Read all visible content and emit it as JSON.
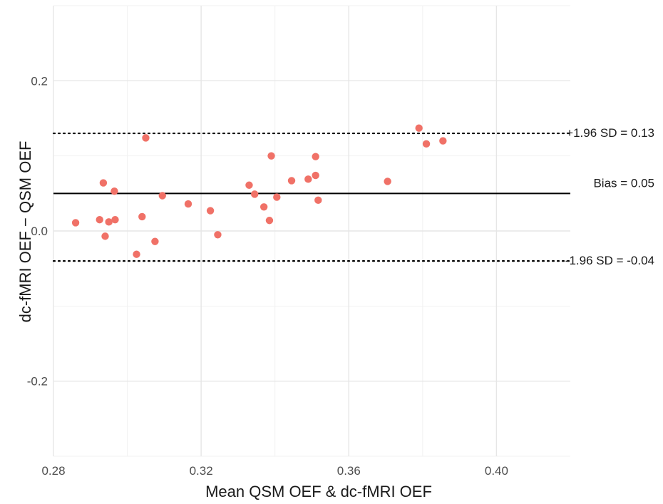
{
  "chart_data": {
    "type": "scatter",
    "title": "",
    "xlabel": "Mean QSM OEF & dc-fMRI OEF",
    "ylabel": "dc-fMRI OEF − QSM OEF",
    "xlim": [
      0.28,
      0.42
    ],
    "ylim": [
      -0.3,
      0.3
    ],
    "x_ticks": [
      0.28,
      0.32,
      0.36,
      0.4
    ],
    "x_tick_labels": [
      "0.28",
      "0.32",
      "0.36",
      "0.40"
    ],
    "y_ticks": [
      -0.2,
      0.0,
      0.2
    ],
    "y_tick_labels": [
      "-0.2",
      "0.0",
      "0.2"
    ],
    "grid": true,
    "point_color": "#f07167",
    "points": [
      {
        "x": 0.286,
        "y": 0.011
      },
      {
        "x": 0.2925,
        "y": 0.015
      },
      {
        "x": 0.2935,
        "y": 0.064
      },
      {
        "x": 0.294,
        "y": -0.007
      },
      {
        "x": 0.295,
        "y": 0.012
      },
      {
        "x": 0.2965,
        "y": 0.053
      },
      {
        "x": 0.2967,
        "y": 0.015
      },
      {
        "x": 0.3025,
        "y": -0.031
      },
      {
        "x": 0.304,
        "y": 0.019
      },
      {
        "x": 0.305,
        "y": 0.124
      },
      {
        "x": 0.3075,
        "y": -0.014
      },
      {
        "x": 0.3095,
        "y": 0.047
      },
      {
        "x": 0.3165,
        "y": 0.036
      },
      {
        "x": 0.3225,
        "y": 0.027
      },
      {
        "x": 0.3245,
        "y": -0.005
      },
      {
        "x": 0.333,
        "y": 0.061
      },
      {
        "x": 0.3345,
        "y": 0.049
      },
      {
        "x": 0.337,
        "y": 0.032
      },
      {
        "x": 0.3385,
        "y": 0.014
      },
      {
        "x": 0.339,
        "y": 0.1
      },
      {
        "x": 0.3405,
        "y": 0.045
      },
      {
        "x": 0.3445,
        "y": 0.067
      },
      {
        "x": 0.349,
        "y": 0.069
      },
      {
        "x": 0.351,
        "y": 0.074
      },
      {
        "x": 0.351,
        "y": 0.099
      },
      {
        "x": 0.3517,
        "y": 0.041
      },
      {
        "x": 0.3705,
        "y": 0.066
      },
      {
        "x": 0.379,
        "y": 0.137
      },
      {
        "x": 0.381,
        "y": 0.116
      },
      {
        "x": 0.3855,
        "y": 0.12
      }
    ],
    "lines": [
      {
        "value": 0.05,
        "style": "solid",
        "label": "Bias = 0.05"
      },
      {
        "value": 0.13,
        "style": "dotted",
        "label": "+1.96 SD = 0.13"
      },
      {
        "value": -0.04,
        "style": "dotted",
        "label": "-1.96 SD = -0.04"
      }
    ]
  }
}
